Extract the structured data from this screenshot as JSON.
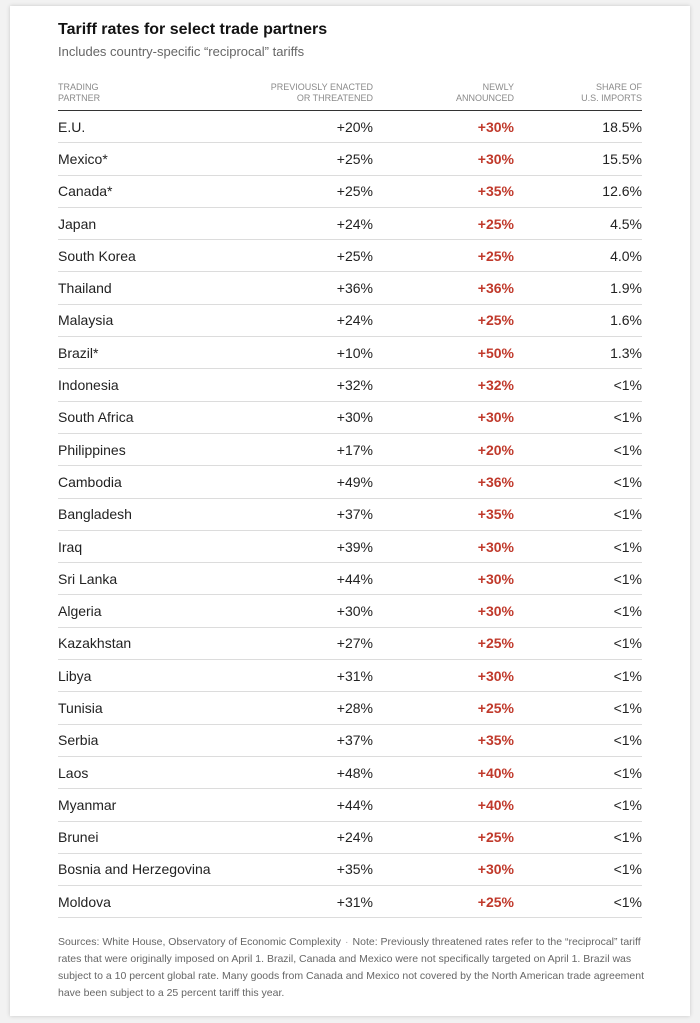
{
  "title": "Tariff rates for select trade partners",
  "subtitle": "Includes country-specific “reciprocal” tariffs",
  "colors": {
    "new_rate": "#c0392b",
    "text": "#222222",
    "muted": "#666666"
  },
  "headers": {
    "partner": [
      "Trading",
      "Partner"
    ],
    "previous": [
      "Previously enacted",
      "or threatened"
    ],
    "new": [
      "Newly",
      "announced"
    ],
    "share": [
      "Share of",
      "U.S. imports"
    ]
  },
  "chart_data": {
    "type": "table",
    "title": "Tariff rates for select trade partners",
    "subtitle": "Includes country-specific “reciprocal” tariffs",
    "columns": [
      "TRADING PARTNER",
      "PREVIOUSLY ENACTED OR THREATENED",
      "NEWLY ANNOUNCED",
      "SHARE OF U.S. IMPORTS"
    ],
    "rows": [
      {
        "partner": "E.U.",
        "previous": "+20%",
        "new": "+30%",
        "share": "18.5%"
      },
      {
        "partner": "Mexico*",
        "previous": "+25%",
        "new": "+30%",
        "share": "15.5%"
      },
      {
        "partner": "Canada*",
        "previous": "+25%",
        "new": "+35%",
        "share": "12.6%"
      },
      {
        "partner": "Japan",
        "previous": "+24%",
        "new": "+25%",
        "share": "4.5%"
      },
      {
        "partner": "South Korea",
        "previous": "+25%",
        "new": "+25%",
        "share": "4.0%"
      },
      {
        "partner": "Thailand",
        "previous": "+36%",
        "new": "+36%",
        "share": "1.9%"
      },
      {
        "partner": "Malaysia",
        "previous": "+24%",
        "new": "+25%",
        "share": "1.6%"
      },
      {
        "partner": "Brazil*",
        "previous": "+10%",
        "new": "+50%",
        "share": "1.3%"
      },
      {
        "partner": "Indonesia",
        "previous": "+32%",
        "new": "+32%",
        "share": "<1%"
      },
      {
        "partner": "South Africa",
        "previous": "+30%",
        "new": "+30%",
        "share": "<1%"
      },
      {
        "partner": "Philippines",
        "previous": "+17%",
        "new": "+20%",
        "share": "<1%"
      },
      {
        "partner": "Cambodia",
        "previous": "+49%",
        "new": "+36%",
        "share": "<1%"
      },
      {
        "partner": "Bangladesh",
        "previous": "+37%",
        "new": "+35%",
        "share": "<1%"
      },
      {
        "partner": "Iraq",
        "previous": "+39%",
        "new": "+30%",
        "share": "<1%"
      },
      {
        "partner": "Sri Lanka",
        "previous": "+44%",
        "new": "+30%",
        "share": "<1%"
      },
      {
        "partner": "Algeria",
        "previous": "+30%",
        "new": "+30%",
        "share": "<1%"
      },
      {
        "partner": "Kazakhstan",
        "previous": "+27%",
        "new": "+25%",
        "share": "<1%"
      },
      {
        "partner": "Libya",
        "previous": "+31%",
        "new": "+30%",
        "share": "<1%"
      },
      {
        "partner": "Tunisia",
        "previous": "+28%",
        "new": "+25%",
        "share": "<1%"
      },
      {
        "partner": "Serbia",
        "previous": "+37%",
        "new": "+35%",
        "share": "<1%"
      },
      {
        "partner": "Laos",
        "previous": "+48%",
        "new": "+40%",
        "share": "<1%"
      },
      {
        "partner": "Myanmar",
        "previous": "+44%",
        "new": "+40%",
        "share": "<1%"
      },
      {
        "partner": "Brunei",
        "previous": "+24%",
        "new": "+25%",
        "share": "<1%"
      },
      {
        "partner": "Bosnia and Herzegovina",
        "previous": "+35%",
        "new": "+30%",
        "share": "<1%"
      },
      {
        "partner": "Moldova",
        "previous": "+31%",
        "new": "+25%",
        "share": "<1%"
      }
    ]
  },
  "notes": {
    "sources": "Sources: White House, Observatory of Economic Complexity",
    "separator": "·",
    "note": "Note: Previously threatened rates refer to the “reciprocal” tariff rates that were originally imposed on April 1. Brazil, Canada and Mexico were not specifically targeted on April 1. Brazil was subject to a 10 percent global rate. Many goods from Canada and Mexico not covered by the North American trade agreement have been subject to a 25 percent tariff this year."
  }
}
